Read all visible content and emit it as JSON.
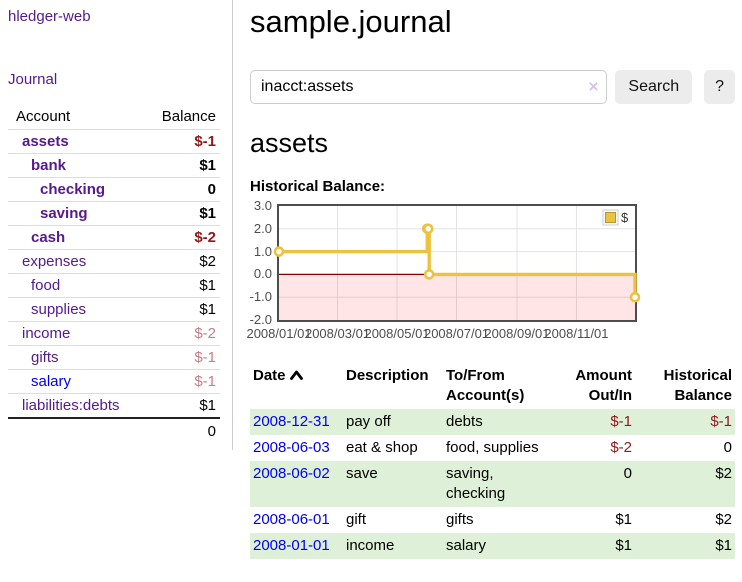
{
  "app": {
    "brand": "hledger-web"
  },
  "sidebar": {
    "nav_journal": "Journal",
    "accounts_table": {
      "headers": [
        "Account",
        "Balance"
      ],
      "rows": [
        {
          "account": "assets",
          "depth": 1,
          "bold": true,
          "balance": "$-1"
        },
        {
          "account": "bank",
          "depth": 2,
          "bold": true,
          "balance": "$1"
        },
        {
          "account": "checking",
          "depth": 3,
          "bold": true,
          "balance": "0"
        },
        {
          "account": "saving",
          "depth": 3,
          "bold": true,
          "balance": "$1"
        },
        {
          "account": "cash",
          "depth": 2,
          "bold": true,
          "balance": "$-2"
        },
        {
          "account": "expenses",
          "depth": 1,
          "bold": false,
          "balance": "$2"
        },
        {
          "account": "food",
          "depth": 2,
          "bold": false,
          "balance": "$1"
        },
        {
          "account": "supplies",
          "depth": 2,
          "bold": false,
          "balance": "$1"
        },
        {
          "account": "income",
          "depth": 1,
          "bold": false,
          "balance": "$-2"
        },
        {
          "account": "gifts",
          "depth": 2,
          "bold": false,
          "balance": "$-1"
        },
        {
          "account": "salary",
          "depth": 2,
          "bold": false,
          "balance": "$-1",
          "link_color": "blue"
        },
        {
          "account": "liabilities:debts",
          "depth": 1,
          "bold": false,
          "balance": "$1"
        }
      ],
      "total": "0"
    }
  },
  "header": {
    "title": "sample.journal"
  },
  "search": {
    "value": "inacct:assets",
    "clear_icon": "×",
    "button": "Search",
    "help_button": "?"
  },
  "register": {
    "heading": "assets",
    "chart_label": "Historical Balance:",
    "table": {
      "headers": [
        "Date",
        "Description",
        "To/From Account(s)",
        "Amount Out/In",
        "Historical Balance"
      ],
      "rows": [
        {
          "date": "2008-12-31",
          "description": "pay off",
          "accounts": "debts",
          "amount": "$-1",
          "balance": "$-1"
        },
        {
          "date": "2008-06-03",
          "description": "eat & shop",
          "accounts": "food, supplies",
          "amount": "$-2",
          "balance": "0"
        },
        {
          "date": "2008-06-02",
          "description": "save",
          "accounts": "saving, checking",
          "amount": "0",
          "balance": "$2"
        },
        {
          "date": "2008-06-01",
          "description": "gift",
          "accounts": "gifts",
          "amount": "$1",
          "balance": "$2"
        },
        {
          "date": "2008-01-01",
          "description": "income",
          "accounts": "salary",
          "amount": "$1",
          "balance": "$1"
        }
      ]
    }
  },
  "chart_data": {
    "type": "line",
    "title": "Historical Balance",
    "step": true,
    "series": [
      {
        "name": "$",
        "color": "#edc240",
        "points": [
          {
            "date": "2008-01-01",
            "value": 1
          },
          {
            "date": "2008-06-01",
            "value": 2
          },
          {
            "date": "2008-06-02",
            "value": 2
          },
          {
            "date": "2008-06-03",
            "value": 0
          },
          {
            "date": "2008-12-31",
            "value": -1
          }
        ]
      }
    ],
    "x_range": [
      "2008-01-01",
      "2008-12-31"
    ],
    "x_ticks": [
      "2008/01/01",
      "2008/03/01",
      "2008/05/01",
      "2008/07/01",
      "2008/09/01",
      "2008/11/01"
    ],
    "y_ticks": [
      3.0,
      2.0,
      1.0,
      0.0,
      -1.0,
      -2.0
    ],
    "ylim": [
      -2,
      3
    ],
    "grid": true,
    "legend": {
      "label": "$",
      "position": "top-right"
    },
    "colors": {
      "negative_region": "rgba(255,0,0,0.10)",
      "zero_line": "#8b0000",
      "grid_line": "#e3e3e3",
      "plot_border": "#4d4d4d",
      "legend_swatch_border": "#b89530"
    }
  }
}
